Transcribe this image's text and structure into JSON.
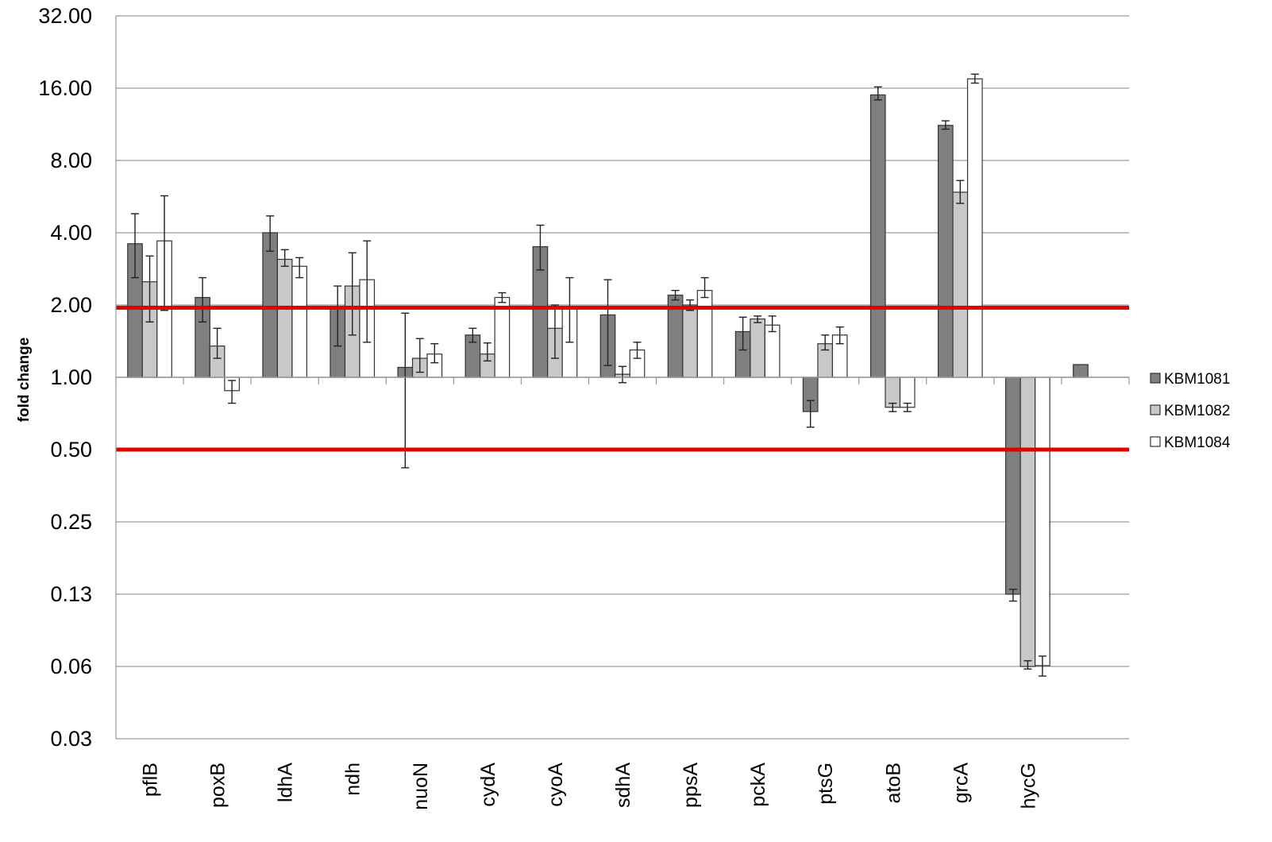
{
  "chart_data": {
    "type": "bar",
    "title": "",
    "xlabel": "",
    "ylabel": "fold change",
    "y_scale": "log2",
    "ylim": [
      0.03,
      32
    ],
    "baseline": 1.0,
    "y_ticks": [
      32,
      16,
      8,
      4,
      2,
      1,
      0.5,
      0.25,
      0.125,
      0.0625,
      0.03125
    ],
    "y_tick_labels": [
      "32.00",
      "16.00",
      "8.00",
      "4.00",
      "2.00",
      "1.00",
      "0.50",
      "0.25",
      "0.13",
      "0.06",
      "0.03"
    ],
    "categories": [
      "pflB",
      "poxB",
      "ldhA",
      "ndh",
      "nuoN",
      "cydA",
      "cyoA",
      "sdhA",
      "ppsA",
      "pckA",
      "ptsG",
      "atoB",
      "grcA",
      "hycG",
      ""
    ],
    "grid": true,
    "legend_position": "right",
    "threshold_lines": [
      {
        "value": 1.95,
        "color": "#e00000"
      },
      {
        "value": 0.5,
        "color": "#e00000"
      }
    ],
    "series": [
      {
        "name": "KBM1081",
        "color": "#7f7f7f",
        "values": [
          3.6,
          2.15,
          4.0,
          1.95,
          1.1,
          1.5,
          3.5,
          1.82,
          2.2,
          1.55,
          0.72,
          15.0,
          11.2,
          0.125,
          1.13
        ],
        "error_low": [
          2.6,
          1.7,
          3.35,
          1.35,
          0.42,
          1.4,
          2.8,
          1.12,
          2.1,
          1.3,
          0.62,
          14.3,
          10.8,
          0.117,
          null
        ],
        "error_high": [
          4.8,
          2.6,
          4.7,
          2.4,
          1.85,
          1.6,
          4.3,
          2.55,
          2.3,
          1.78,
          0.8,
          16.2,
          11.7,
          0.131,
          null
        ]
      },
      {
        "name": "KBM1082",
        "color": "#c8c8c8",
        "values": [
          2.5,
          1.35,
          3.1,
          2.4,
          1.2,
          1.25,
          1.6,
          1.03,
          2.0,
          1.75,
          1.38,
          0.75,
          5.9,
          0.0625,
          null
        ],
        "error_low": [
          1.7,
          1.2,
          2.9,
          1.5,
          1.05,
          1.17,
          1.2,
          0.95,
          1.9,
          1.69,
          1.3,
          0.72,
          5.3,
          0.061,
          null
        ],
        "error_high": [
          3.2,
          1.6,
          3.4,
          3.3,
          1.45,
          1.39,
          2.0,
          1.11,
          2.1,
          1.8,
          1.5,
          0.78,
          6.6,
          0.066,
          null
        ]
      },
      {
        "name": "KBM1084",
        "color": "#ffffff",
        "values": [
          3.7,
          0.88,
          2.9,
          2.55,
          1.25,
          2.15,
          1.97,
          1.3,
          2.3,
          1.65,
          1.5,
          0.75,
          17.5,
          0.063,
          null
        ],
        "error_low": [
          1.9,
          0.78,
          2.6,
          1.4,
          1.15,
          2.05,
          1.4,
          1.2,
          2.15,
          1.55,
          1.38,
          0.72,
          16.8,
          0.057,
          null
        ],
        "error_high": [
          5.7,
          0.97,
          3.15,
          3.7,
          1.38,
          2.25,
          2.6,
          1.4,
          2.6,
          1.8,
          1.62,
          0.78,
          18.3,
          0.069,
          null
        ]
      }
    ]
  }
}
